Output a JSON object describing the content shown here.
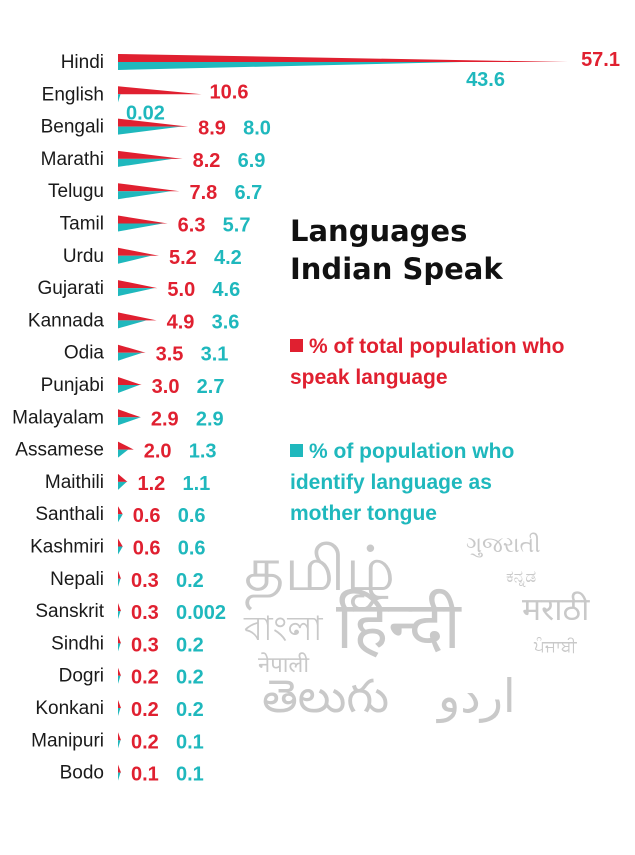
{
  "colors": {
    "population": "#e02030",
    "mother_tongue": "#1fb8bd",
    "watermark": "#c9c9c9"
  },
  "panel": {
    "title": "Languages\nIndian Speak",
    "legend": [
      {
        "text": "% of total population who\nspeak language",
        "color": "#e02030",
        "icon": "square-marker-icon"
      },
      {
        "text": "% of population who\nidentify language as\nmother tongue",
        "color": "#1fb8bd",
        "icon": "square-marker-icon"
      }
    ]
  },
  "watermark": {
    "words": [
      "தமிழ்",
      "ગુજરાતી",
      "ಕನ್ನಡ",
      "বাংলা",
      "हिन्दी",
      "मराठी",
      "ਪੰਜਾਬੀ",
      "नेपाली",
      "తెలుగు",
      "اردو"
    ]
  },
  "chart_data": {
    "type": "bar",
    "orientation": "horizontal",
    "categories": [
      "Hindi",
      "English",
      "Bengali",
      "Marathi",
      "Telugu",
      "Tamil",
      "Urdu",
      "Gujarati",
      "Kannada",
      "Odia",
      "Punjabi",
      "Malayalam",
      "Assamese",
      "Maithili",
      "Santhali",
      "Kashmiri",
      "Nepali",
      "Sanskrit",
      "Sindhi",
      "Dogri",
      "Konkani",
      "Manipuri",
      "Bodo"
    ],
    "series": [
      {
        "name": "% of total population who speak language",
        "values": [
          57.1,
          10.6,
          8.9,
          8.2,
          7.8,
          6.3,
          5.2,
          5.0,
          4.9,
          3.5,
          3.0,
          2.9,
          2.0,
          1.2,
          0.6,
          0.6,
          0.3,
          0.3,
          0.3,
          0.2,
          0.2,
          0.2,
          0.1
        ],
        "labels": [
          "57.1",
          "10.6",
          "8.9",
          "8.2",
          "7.8",
          "6.3",
          "5.2",
          "5.0",
          "4.9",
          "3.5",
          "3.0",
          "2.9",
          "2.0",
          "1.2",
          "0.6",
          "0.6",
          "0.3",
          "0.3",
          "0.3",
          "0.2",
          "0.2",
          "0.2",
          "0.1"
        ]
      },
      {
        "name": "% of population who identify language as mother tongue",
        "values": [
          43.6,
          0.02,
          8.0,
          6.9,
          6.7,
          5.7,
          4.2,
          4.6,
          3.6,
          3.1,
          2.7,
          2.9,
          1.3,
          1.1,
          0.6,
          0.6,
          0.2,
          0.002,
          0.2,
          0.2,
          0.2,
          0.1,
          0.1
        ],
        "labels": [
          "43.6",
          "0.02",
          "8.0",
          "6.9",
          "6.7",
          "5.7",
          "4.2",
          "4.6",
          "3.6",
          "3.1",
          "2.7",
          "2.9",
          "1.3",
          "1.1",
          "0.6",
          "0.6",
          "0.2",
          "0.002",
          "0.2",
          "0.2",
          "0.2",
          "0.1",
          "0.1"
        ]
      }
    ],
    "xlim": [
      0,
      57.1
    ],
    "grid": false,
    "legend_position": "right"
  }
}
